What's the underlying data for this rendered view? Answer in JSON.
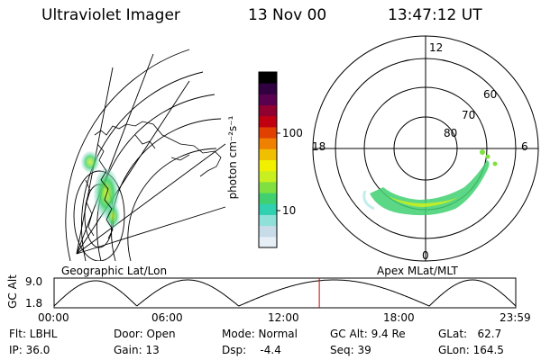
{
  "header": {
    "instrument": "Ultraviolet Imager",
    "date": "13 Nov 00",
    "time": "13:47:12 UT"
  },
  "geo_panel": {
    "label": "Geographic Lat/Lon"
  },
  "colorbar": {
    "unit_label": "photon cm⁻²s⁻¹",
    "ticks": [
      "100",
      "10"
    ],
    "colors": [
      "#e6eef6",
      "#c8dbe8",
      "#8fe0d8",
      "#30d0b0",
      "#40d070",
      "#80e040",
      "#c8f020",
      "#f0f000",
      "#f0c000",
      "#f08000",
      "#e04000",
      "#c00010",
      "#900030",
      "#5a0050",
      "#300040",
      "#000000"
    ]
  },
  "polar_panel": {
    "label": "Apex MLat/MLT",
    "mlt_labels": {
      "top": "12",
      "left": "18",
      "right": "6",
      "bottom": "0"
    },
    "lat_labels": [
      "60",
      "70",
      "80"
    ]
  },
  "orbit_plot": {
    "ylabel": "GC Alt",
    "ytick_top": "9.0",
    "ytick_bottom": "1.8",
    "xticks": [
      "00:00",
      "06:00",
      "12:00",
      "18:00",
      "23:59"
    ],
    "current_time_hours": 13.787,
    "marker_color": "#cc0000"
  },
  "footer": {
    "flt": "Flt: LBHL",
    "ip": "IP: 36.0",
    "door": "Door: Open",
    "gain": "Gain: 13",
    "mode": "Mode: Normal",
    "dsp": "Dsp:    -4.4",
    "gc_alt": "GC Alt: 9.4 Re",
    "seq": "Seq: 39",
    "glat": "GLat:   62.7",
    "glon": "GLon: 164.5"
  }
}
